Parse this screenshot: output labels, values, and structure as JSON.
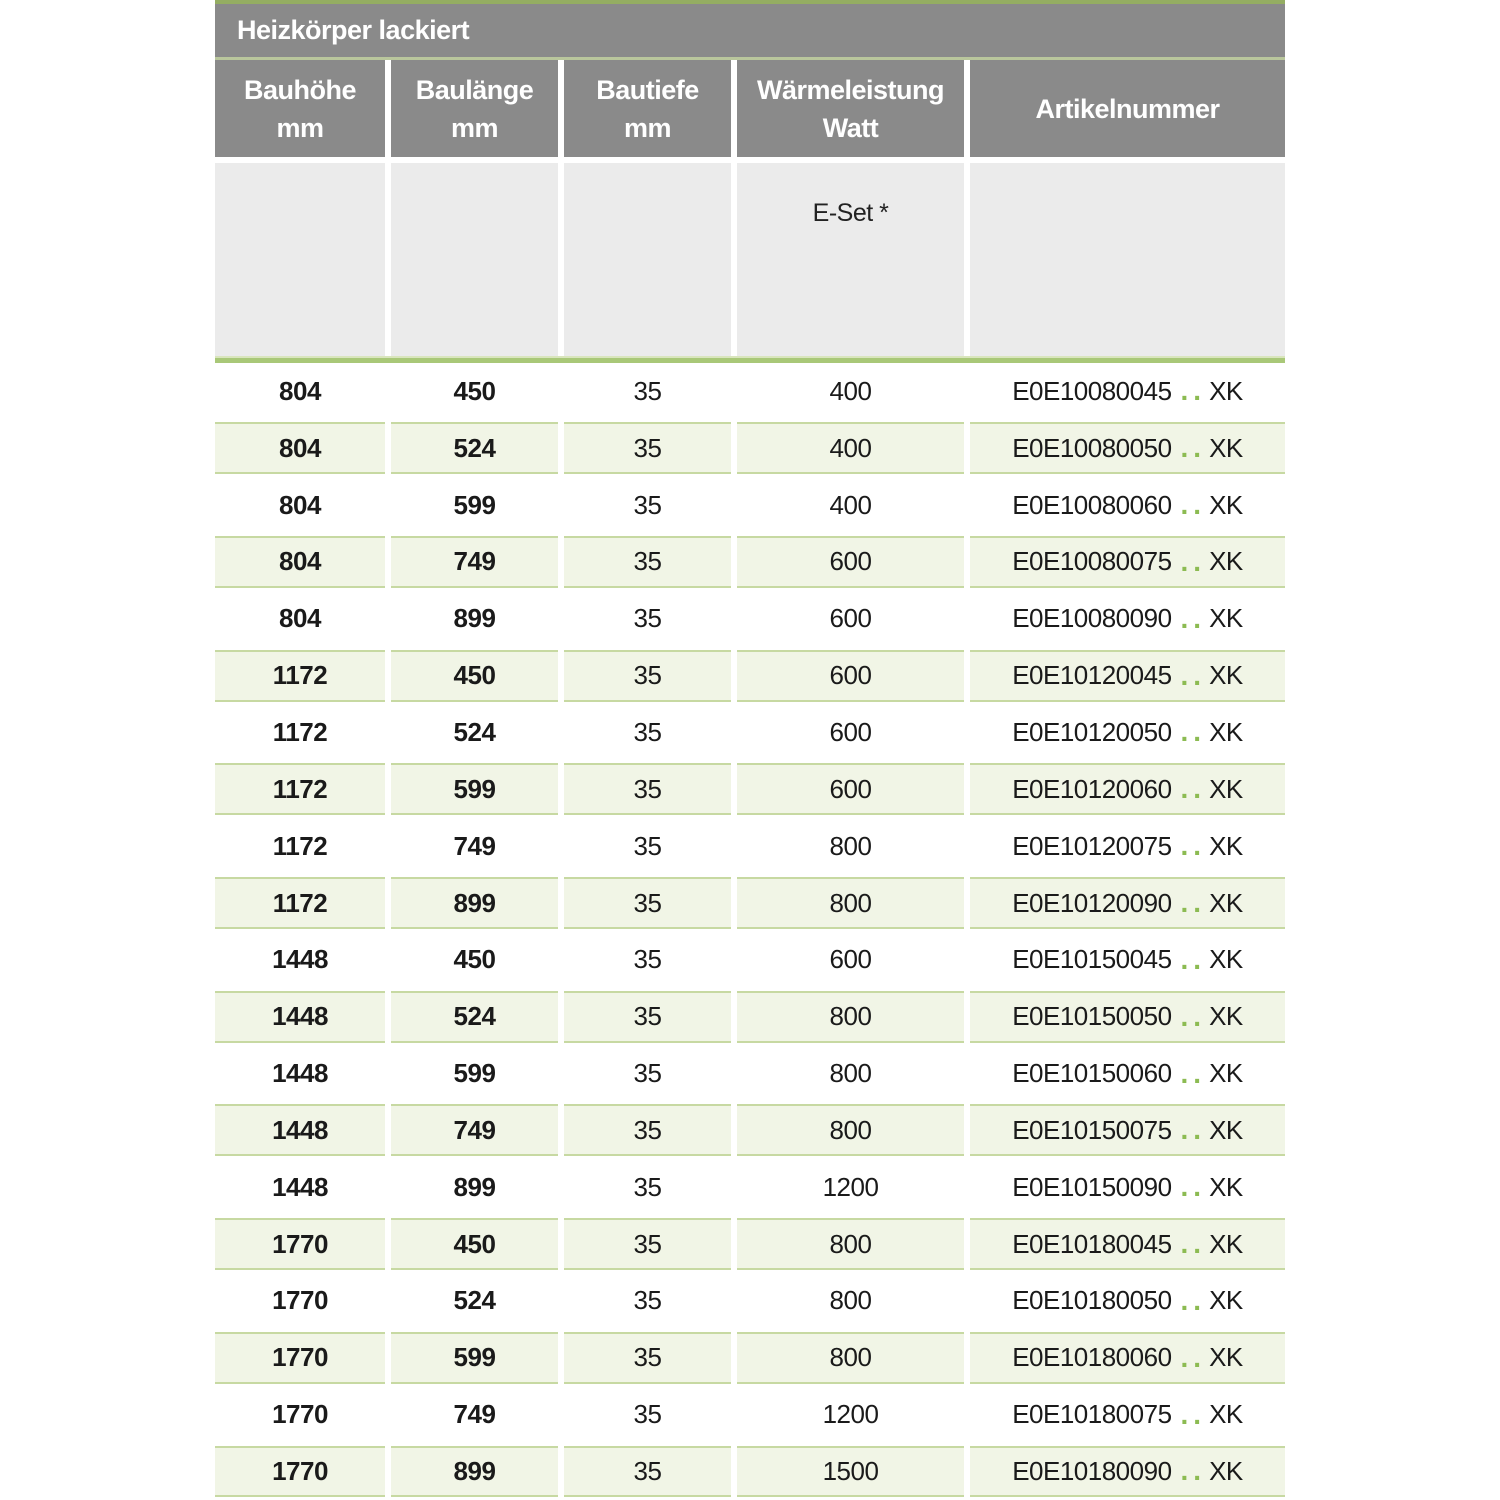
{
  "title": "Heizkörper lackiert",
  "columns": [
    {
      "line1": "Bauhöhe",
      "line2": "mm"
    },
    {
      "line1": "Baulänge",
      "line2": "mm"
    },
    {
      "line1": "Bautiefe",
      "line2": "mm"
    },
    {
      "line1": "Wärmeleistung",
      "line2": "Watt"
    },
    {
      "line1": "Artikelnummer",
      "line2": ""
    }
  ],
  "subheader": {
    "e_set_label": "E-Set *"
  },
  "art_sep": "..",
  "rows": [
    {
      "bauhoehe": "804",
      "baulaenge": "450",
      "bautiefe": "35",
      "watt": "400",
      "art_base": "E0E10080045",
      "art_end": "XK"
    },
    {
      "bauhoehe": "804",
      "baulaenge": "524",
      "bautiefe": "35",
      "watt": "400",
      "art_base": "E0E10080050",
      "art_end": "XK"
    },
    {
      "bauhoehe": "804",
      "baulaenge": "599",
      "bautiefe": "35",
      "watt": "400",
      "art_base": "E0E10080060",
      "art_end": "XK"
    },
    {
      "bauhoehe": "804",
      "baulaenge": "749",
      "bautiefe": "35",
      "watt": "600",
      "art_base": "E0E10080075",
      "art_end": "XK"
    },
    {
      "bauhoehe": "804",
      "baulaenge": "899",
      "bautiefe": "35",
      "watt": "600",
      "art_base": "E0E10080090",
      "art_end": "XK"
    },
    {
      "bauhoehe": "1172",
      "baulaenge": "450",
      "bautiefe": "35",
      "watt": "600",
      "art_base": "E0E10120045",
      "art_end": "XK"
    },
    {
      "bauhoehe": "1172",
      "baulaenge": "524",
      "bautiefe": "35",
      "watt": "600",
      "art_base": "E0E10120050",
      "art_end": "XK"
    },
    {
      "bauhoehe": "1172",
      "baulaenge": "599",
      "bautiefe": "35",
      "watt": "600",
      "art_base": "E0E10120060",
      "art_end": "XK"
    },
    {
      "bauhoehe": "1172",
      "baulaenge": "749",
      "bautiefe": "35",
      "watt": "800",
      "art_base": "E0E10120075",
      "art_end": "XK"
    },
    {
      "bauhoehe": "1172",
      "baulaenge": "899",
      "bautiefe": "35",
      "watt": "800",
      "art_base": "E0E10120090",
      "art_end": "XK"
    },
    {
      "bauhoehe": "1448",
      "baulaenge": "450",
      "bautiefe": "35",
      "watt": "600",
      "art_base": "E0E10150045",
      "art_end": "XK"
    },
    {
      "bauhoehe": "1448",
      "baulaenge": "524",
      "bautiefe": "35",
      "watt": "800",
      "art_base": "E0E10150050",
      "art_end": "XK"
    },
    {
      "bauhoehe": "1448",
      "baulaenge": "599",
      "bautiefe": "35",
      "watt": "800",
      "art_base": "E0E10150060",
      "art_end": "XK"
    },
    {
      "bauhoehe": "1448",
      "baulaenge": "749",
      "bautiefe": "35",
      "watt": "800",
      "art_base": "E0E10150075",
      "art_end": "XK"
    },
    {
      "bauhoehe": "1448",
      "baulaenge": "899",
      "bautiefe": "35",
      "watt": "1200",
      "art_base": "E0E10150090",
      "art_end": "XK"
    },
    {
      "bauhoehe": "1770",
      "baulaenge": "450",
      "bautiefe": "35",
      "watt": "800",
      "art_base": "E0E10180045",
      "art_end": "XK"
    },
    {
      "bauhoehe": "1770",
      "baulaenge": "524",
      "bautiefe": "35",
      "watt": "800",
      "art_base": "E0E10180050",
      "art_end": "XK"
    },
    {
      "bauhoehe": "1770",
      "baulaenge": "599",
      "bautiefe": "35",
      "watt": "800",
      "art_base": "E0E10180060",
      "art_end": "XK"
    },
    {
      "bauhoehe": "1770",
      "baulaenge": "749",
      "bautiefe": "35",
      "watt": "1200",
      "art_base": "E0E10180075",
      "art_end": "XK"
    },
    {
      "bauhoehe": "1770",
      "baulaenge": "899",
      "bautiefe": "35",
      "watt": "1500",
      "art_base": "E0E10180090",
      "art_end": "XK"
    }
  ],
  "colors": {
    "header_gray": "#8a8a8a",
    "subheader_gray": "#ebebeb",
    "accent_green": "#a9c878",
    "top_strip_green": "#94ad62",
    "divider_green": "#b9c69c",
    "row_green": "#f1f5e6",
    "row_border_green": "#c7d9a2",
    "dot_green": "#8cbb52",
    "text_dark": "#1a1a1a"
  }
}
